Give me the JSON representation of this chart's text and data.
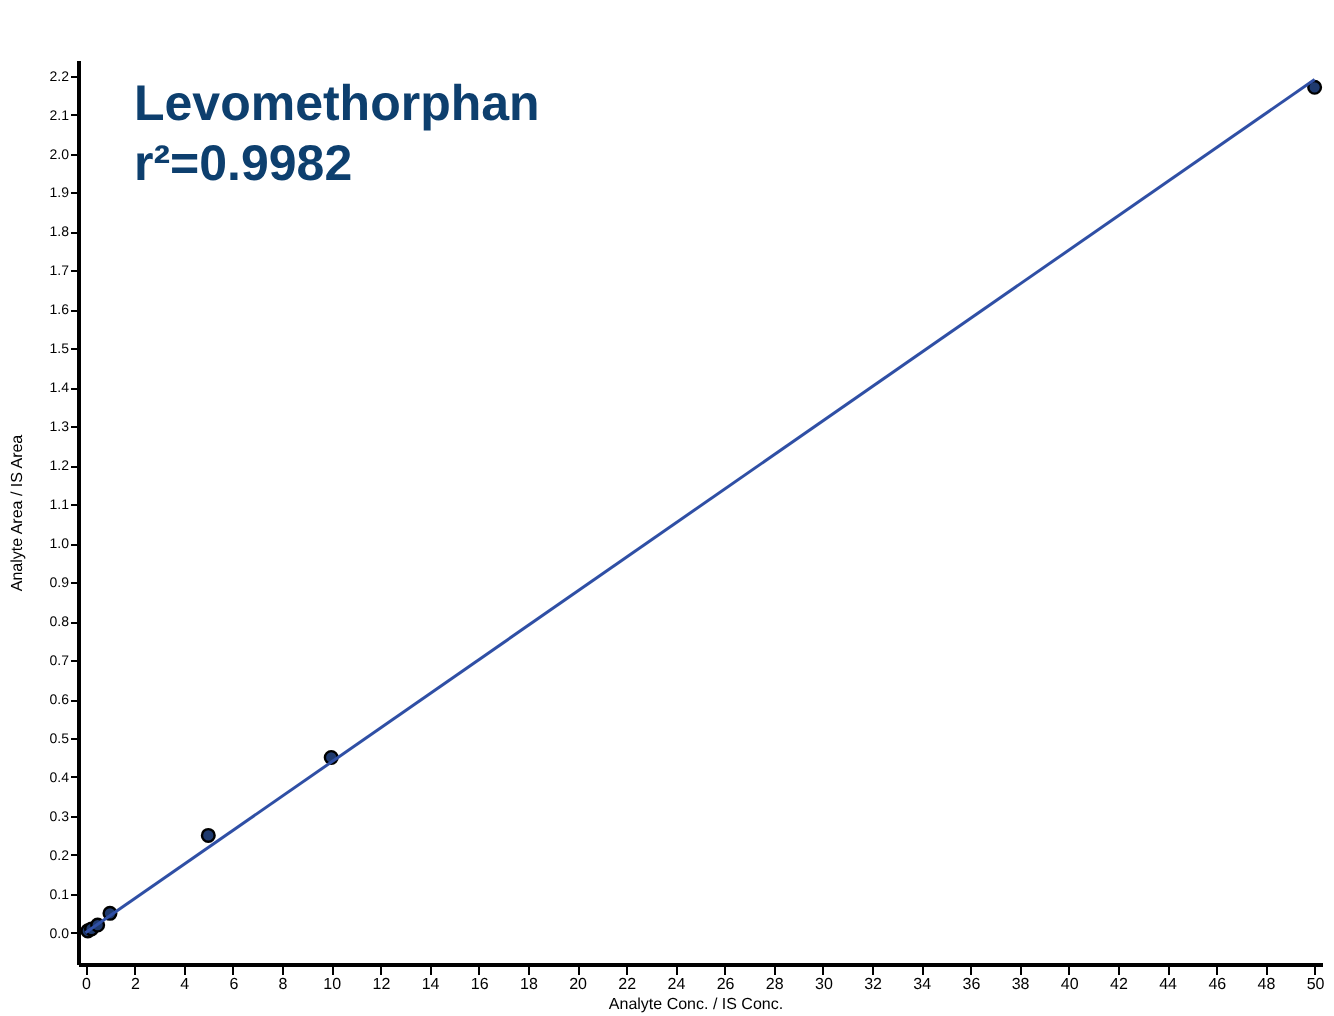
{
  "chart_data": {
    "type": "scatter",
    "title": "Levomethorphan",
    "xlabel": "Analyte Conc. / IS Conc.",
    "ylabel": "Analyte Area / IS Area",
    "annotations": [
      "r²=0.9982"
    ],
    "series": [
      {
        "color": "#1f3a6e",
        "marker": "circle",
        "x": [
          0.1,
          0.25,
          0.5,
          1,
          5,
          10,
          50
        ],
        "values": [
          0.005,
          0.01,
          0.02,
          0.05,
          0.25,
          0.45,
          2.17
        ]
      },
      {
        "type": "line",
        "color": "#2f4fa5",
        "line_style": "solid",
        "marker": "none",
        "x": [
          0,
          50
        ],
        "values": [
          0.0,
          2.19
        ]
      }
    ],
    "xlim": [
      -0.3,
      50.3
    ],
    "xticks": [
      0,
      2,
      4,
      6,
      8,
      10,
      12,
      14,
      16,
      18,
      20,
      22,
      24,
      26,
      28,
      30,
      32,
      34,
      36,
      38,
      40,
      42,
      44,
      46,
      48,
      50
    ],
    "ylim": [
      -0.08,
      2.24
    ],
    "yticks": [
      {
        "value": 0,
        "label": "0.0"
      },
      0.1,
      0.2,
      0.3,
      0.4,
      0.5,
      0.6,
      0.7,
      0.8,
      0.9,
      {
        "value": 1,
        "label": "1.0"
      },
      1.1,
      1.2,
      1.3,
      1.4,
      1.5,
      1.6,
      1.7,
      1.8,
      1.9,
      {
        "value": 2,
        "label": "2.0"
      },
      2.1,
      2.2
    ],
    "grid": false,
    "legend": false
  }
}
